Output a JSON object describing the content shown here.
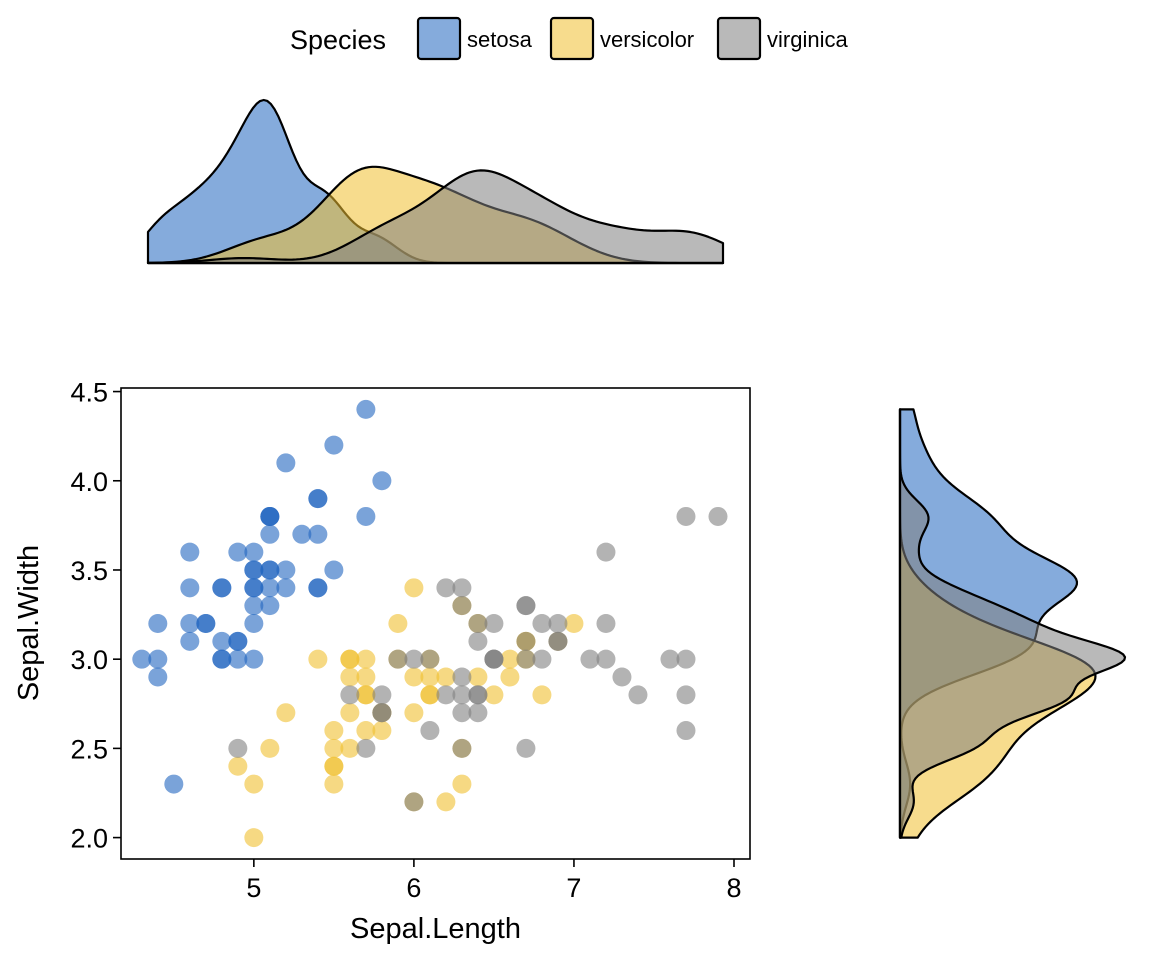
{
  "legend": {
    "title": "Species",
    "placement": "top",
    "items": [
      {
        "label": "setosa",
        "color": "#2166c0"
      },
      {
        "label": "versicolor",
        "color": "#f0c030"
      },
      {
        "label": "virginica",
        "color": "#808080"
      }
    ]
  },
  "chart_data": {
    "type": "scatter",
    "xlabel": "Sepal.Length",
    "ylabel": "Sepal.Width",
    "xlim": [
      4.17,
      8.1
    ],
    "ylim": [
      1.88,
      4.52
    ],
    "xticks": [
      5,
      6,
      7,
      8
    ],
    "xtick_labels": [
      "5",
      "6",
      "7",
      "8"
    ],
    "yticks": [
      2.0,
      2.5,
      3.0,
      3.5,
      4.0,
      4.5
    ],
    "ytick_labels": [
      "2.0",
      "2.5",
      "3.0",
      "3.5",
      "4.0",
      "4.5"
    ],
    "grid": false,
    "marginal": "density",
    "series": [
      {
        "name": "setosa",
        "color": "#2166c0",
        "points": [
          [
            5.1,
            3.5
          ],
          [
            4.9,
            3.0
          ],
          [
            4.7,
            3.2
          ],
          [
            4.6,
            3.1
          ],
          [
            5.0,
            3.6
          ],
          [
            5.4,
            3.9
          ],
          [
            4.6,
            3.4
          ],
          [
            5.0,
            3.4
          ],
          [
            4.4,
            2.9
          ],
          [
            4.9,
            3.1
          ],
          [
            5.4,
            3.7
          ],
          [
            4.8,
            3.4
          ],
          [
            4.8,
            3.0
          ],
          [
            4.3,
            3.0
          ],
          [
            5.8,
            4.0
          ],
          [
            5.7,
            4.4
          ],
          [
            5.4,
            3.9
          ],
          [
            5.1,
            3.5
          ],
          [
            5.7,
            3.8
          ],
          [
            5.1,
            3.8
          ],
          [
            5.4,
            3.4
          ],
          [
            5.1,
            3.7
          ],
          [
            4.6,
            3.6
          ],
          [
            5.1,
            3.3
          ],
          [
            4.8,
            3.4
          ],
          [
            5.0,
            3.0
          ],
          [
            5.0,
            3.4
          ],
          [
            5.2,
            3.5
          ],
          [
            5.2,
            3.4
          ],
          [
            4.7,
            3.2
          ],
          [
            4.8,
            3.1
          ],
          [
            5.4,
            3.4
          ],
          [
            5.2,
            4.1
          ],
          [
            5.5,
            4.2
          ],
          [
            4.9,
            3.1
          ],
          [
            5.0,
            3.2
          ],
          [
            5.5,
            3.5
          ],
          [
            4.9,
            3.6
          ],
          [
            4.4,
            3.0
          ],
          [
            5.1,
            3.4
          ],
          [
            5.0,
            3.5
          ],
          [
            4.5,
            2.3
          ],
          [
            4.4,
            3.2
          ],
          [
            5.0,
            3.5
          ],
          [
            5.1,
            3.8
          ],
          [
            4.8,
            3.0
          ],
          [
            5.1,
            3.8
          ],
          [
            4.6,
            3.2
          ],
          [
            5.3,
            3.7
          ],
          [
            5.0,
            3.3
          ]
        ]
      },
      {
        "name": "versicolor",
        "color": "#f0c030",
        "points": [
          [
            7.0,
            3.2
          ],
          [
            6.4,
            3.2
          ],
          [
            6.9,
            3.1
          ],
          [
            5.5,
            2.3
          ],
          [
            6.5,
            2.8
          ],
          [
            5.7,
            2.8
          ],
          [
            6.3,
            3.3
          ],
          [
            4.9,
            2.4
          ],
          [
            6.6,
            2.9
          ],
          [
            5.2,
            2.7
          ],
          [
            5.0,
            2.0
          ],
          [
            5.9,
            3.0
          ],
          [
            6.0,
            2.2
          ],
          [
            6.1,
            2.9
          ],
          [
            5.6,
            2.9
          ],
          [
            6.7,
            3.1
          ],
          [
            5.6,
            3.0
          ],
          [
            5.8,
            2.7
          ],
          [
            6.2,
            2.2
          ],
          [
            5.6,
            2.5
          ],
          [
            5.9,
            3.2
          ],
          [
            6.1,
            2.8
          ],
          [
            6.3,
            2.5
          ],
          [
            6.1,
            2.8
          ],
          [
            6.4,
            2.9
          ],
          [
            6.6,
            3.0
          ],
          [
            6.8,
            2.8
          ],
          [
            6.7,
            3.0
          ],
          [
            6.0,
            2.9
          ],
          [
            5.7,
            2.6
          ],
          [
            5.5,
            2.4
          ],
          [
            5.5,
            2.4
          ],
          [
            5.8,
            2.7
          ],
          [
            6.0,
            2.7
          ],
          [
            5.4,
            3.0
          ],
          [
            6.0,
            3.4
          ],
          [
            6.7,
            3.1
          ],
          [
            6.3,
            2.3
          ],
          [
            5.6,
            3.0
          ],
          [
            5.5,
            2.5
          ],
          [
            5.5,
            2.6
          ],
          [
            6.1,
            3.0
          ],
          [
            5.8,
            2.6
          ],
          [
            5.0,
            2.3
          ],
          [
            5.6,
            2.7
          ],
          [
            5.7,
            3.0
          ],
          [
            5.7,
            2.9
          ],
          [
            6.2,
            2.9
          ],
          [
            5.1,
            2.5
          ],
          [
            5.7,
            2.8
          ]
        ]
      },
      {
        "name": "virginica",
        "color": "#808080",
        "points": [
          [
            6.3,
            3.3
          ],
          [
            5.8,
            2.7
          ],
          [
            7.1,
            3.0
          ],
          [
            6.3,
            2.9
          ],
          [
            6.5,
            3.0
          ],
          [
            7.6,
            3.0
          ],
          [
            4.9,
            2.5
          ],
          [
            7.3,
            2.9
          ],
          [
            6.7,
            2.5
          ],
          [
            7.2,
            3.6
          ],
          [
            6.5,
            3.2
          ],
          [
            6.4,
            2.7
          ],
          [
            6.8,
            3.0
          ],
          [
            5.7,
            2.5
          ],
          [
            5.8,
            2.8
          ],
          [
            6.4,
            3.2
          ],
          [
            6.5,
            3.0
          ],
          [
            7.7,
            3.8
          ],
          [
            7.7,
            2.6
          ],
          [
            6.0,
            2.2
          ],
          [
            6.9,
            3.2
          ],
          [
            5.6,
            2.8
          ],
          [
            7.7,
            2.8
          ],
          [
            6.3,
            2.7
          ],
          [
            6.7,
            3.3
          ],
          [
            7.2,
            3.2
          ],
          [
            6.2,
            2.8
          ],
          [
            6.1,
            3.0
          ],
          [
            6.4,
            2.8
          ],
          [
            7.2,
            3.0
          ],
          [
            7.4,
            2.8
          ],
          [
            7.9,
            3.8
          ],
          [
            6.4,
            2.8
          ],
          [
            6.3,
            2.8
          ],
          [
            6.1,
            2.6
          ],
          [
            7.7,
            3.0
          ],
          [
            6.3,
            3.4
          ],
          [
            6.4,
            3.1
          ],
          [
            6.0,
            3.0
          ],
          [
            6.9,
            3.1
          ],
          [
            6.7,
            3.1
          ],
          [
            6.9,
            3.1
          ],
          [
            5.8,
            2.7
          ],
          [
            6.8,
            3.2
          ],
          [
            6.7,
            3.3
          ],
          [
            6.7,
            3.0
          ],
          [
            6.3,
            2.5
          ],
          [
            6.5,
            3.0
          ],
          [
            6.2,
            3.4
          ],
          [
            5.9,
            3.0
          ]
        ]
      }
    ]
  }
}
